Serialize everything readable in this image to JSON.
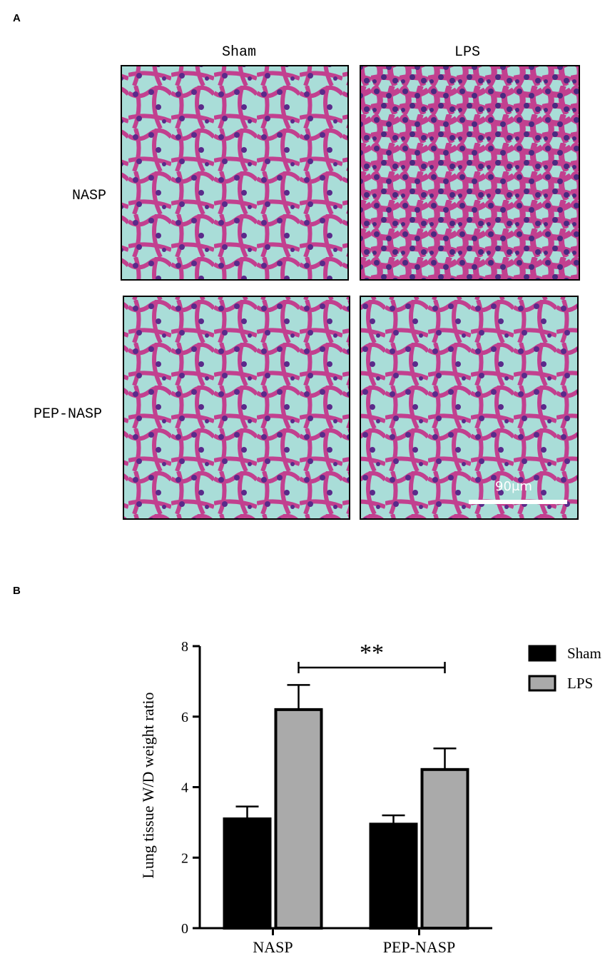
{
  "panel_a": {
    "label": "A",
    "columns": [
      "Sham",
      "LPS"
    ],
    "rows": [
      "NASP",
      "PEP-NASP"
    ],
    "scale_bar": "90μm"
  },
  "panel_b_label": "B",
  "chart_data": {
    "type": "bar",
    "y_label": "Lung tissue W/D weight ratio",
    "categories": [
      "NASP",
      "PEP-NASP"
    ],
    "series": [
      {
        "name": "Sham",
        "color": "#000000",
        "values": [
          3.1,
          2.95
        ],
        "errors": [
          0.35,
          0.25
        ]
      },
      {
        "name": "LPS",
        "color": "#aaaaaa",
        "values": [
          6.2,
          4.5
        ],
        "errors": [
          0.7,
          0.6
        ]
      }
    ],
    "ylim": [
      0,
      8
    ],
    "yticks": [
      0,
      2,
      4,
      6,
      8
    ],
    "annotation": "**",
    "legend": "upper right"
  }
}
